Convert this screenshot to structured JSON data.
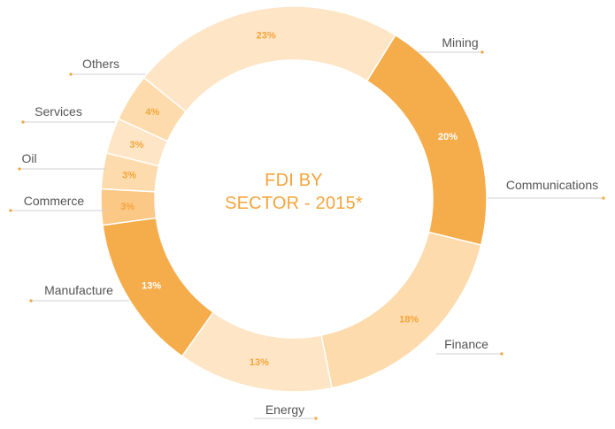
{
  "chart_data": {
    "type": "pie",
    "title_lines": [
      "FDI BY",
      "SECTOR - 2015*"
    ],
    "slices": [
      {
        "label": "Mining",
        "value": 23,
        "value_label": "23%",
        "color": "#fde5c6",
        "value_color": "#f5a43a"
      },
      {
        "label": "Communications",
        "value": 20,
        "value_label": "20%",
        "color": "#f5ac4b",
        "value_color": "#ffffff"
      },
      {
        "label": "Finance",
        "value": 18,
        "value_label": "18%",
        "color": "#fddbac",
        "value_color": "#f5a43a"
      },
      {
        "label": "Energy",
        "value": 13,
        "value_label": "13%",
        "color": "#fde5c6",
        "value_color": "#f5a43a"
      },
      {
        "label": "Manufacture",
        "value": 13,
        "value_label": "13%",
        "color": "#f5ac4b",
        "value_color": "#ffffff"
      },
      {
        "label": "Commerce",
        "value": 3,
        "value_label": "3%",
        "color": "#fbc886",
        "value_color": "#f5a43a"
      },
      {
        "label": "Oil",
        "value": 3,
        "value_label": "3%",
        "color": "#fddbac",
        "value_color": "#f5a43a"
      },
      {
        "label": "Services",
        "value": 3,
        "value_label": "3%",
        "color": "#fde5c6",
        "value_color": "#f5a43a"
      },
      {
        "label": "Others",
        "value": 4,
        "value_label": "4%",
        "color": "#fddbac",
        "value_color": "#f5a43a"
      }
    ],
    "colors": {
      "label_text": "#555555",
      "leader_line": "#d0d0d0",
      "leader_dot": "#f5a43a",
      "title": "#f5a43a"
    },
    "legend": "none"
  }
}
